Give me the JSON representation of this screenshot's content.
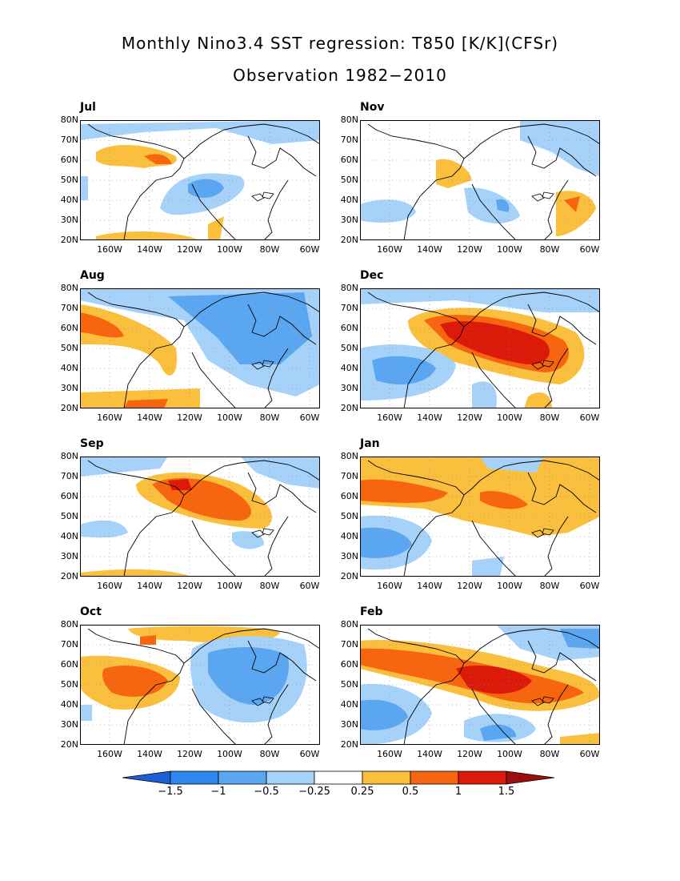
{
  "title": "Monthly Nino3.4 SST regression: T850 [K/K](CFSr)",
  "subtitle": "Observation 1982−2010",
  "y_ticks": [
    "80N",
    "70N",
    "60N",
    "50N",
    "40N",
    "30N",
    "20N"
  ],
  "x_ticks": [
    "160W",
    "140W",
    "120W",
    "100W",
    "80W",
    "60W"
  ],
  "panels": [
    {
      "label": "Jul"
    },
    {
      "label": "Nov"
    },
    {
      "label": "Aug"
    },
    {
      "label": "Dec"
    },
    {
      "label": "Sep"
    },
    {
      "label": "Jan"
    },
    {
      "label": "Oct"
    },
    {
      "label": "Feb"
    }
  ],
  "colorbar": {
    "labels": [
      "−1.5",
      "−1",
      "−0.5",
      "−0.25",
      "0.25",
      "0.5",
      "1",
      "1.5"
    ],
    "colors": [
      "#1e5fd6",
      "#2f86ee",
      "#5aa6f0",
      "#a6d1f8",
      "#ffffff",
      "#fbbf3e",
      "#f8650f",
      "#db1a0a",
      "#9a0e0e"
    ]
  },
  "map_colors": {
    "blue_light": "#a6d1f8",
    "blue_mid": "#5aa6f0",
    "blue_dark": "#2f86ee",
    "orange_light": "#fbbf3e",
    "orange_mid": "#f8650f",
    "red": "#db1a0a"
  }
}
